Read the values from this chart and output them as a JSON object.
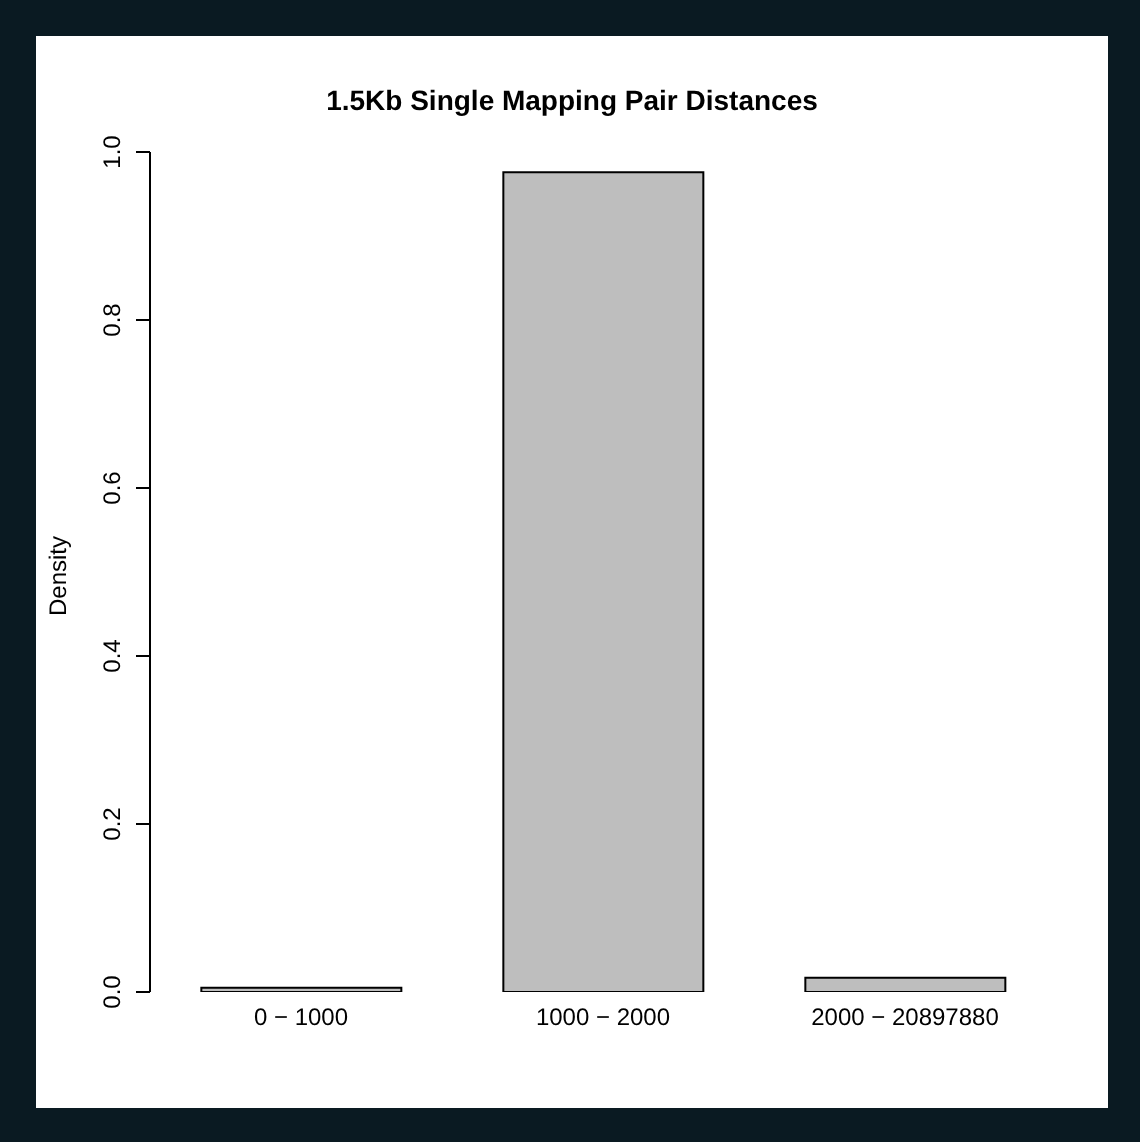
{
  "chart_data": {
    "type": "bar",
    "title": "1.5Kb Single Mapping Pair Distances",
    "ylabel": "Density",
    "categories": [
      "0 − 1000",
      "1000 − 2000",
      "2000 − 20897880"
    ],
    "values": [
      0.005,
      0.976,
      0.017
    ],
    "color": "#bebebe",
    "ylim": [
      0,
      1
    ],
    "yticks": [
      {
        "value": 0,
        "label": "0.0"
      },
      0.2,
      0.4,
      0.6,
      0.8,
      {
        "value": 1,
        "label": "1.0"
      }
    ]
  }
}
